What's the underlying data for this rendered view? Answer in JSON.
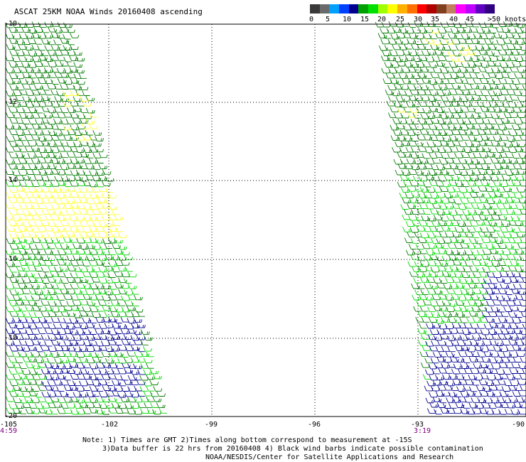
{
  "title": "ASCAT 25KM NOAA Winds 20160408 ascending",
  "legend": {
    "labels": [
      "0",
      "5",
      "10",
      "15",
      "20",
      "25",
      "30",
      "35",
      "40",
      "45",
      ">50 knots"
    ],
    "colors": [
      "#3a3a3a",
      "#6a6a6a",
      "#00a0ff",
      "#0040ff",
      "#000090",
      "#00a000",
      "#00e000",
      "#a0ff00",
      "#ffff00",
      "#ffb000",
      "#ff7000",
      "#ff0000",
      "#b00000",
      "#804020",
      "#c08060",
      "#ff00ff",
      "#c000ff",
      "#6000c0",
      "#300080"
    ]
  },
  "axes": {
    "lat_labels": [
      "-10",
      "-12",
      "-14",
      "-16",
      "-18",
      "-20"
    ],
    "lon_labels": [
      "-105",
      "-102",
      "-99",
      "-96",
      "-93",
      "-90"
    ],
    "time_labels": [
      "4:59",
      "3:19"
    ],
    "grid": true
  },
  "wind_colors": {
    "dark_green": "#007a00",
    "light_green": "#00d800",
    "yellow": "#ffff30",
    "navy": "#000090"
  },
  "notes": [
    "Note: 1) Times are GMT 2)Times along bottom correspond to measurement at -15S",
    "3)Data buffer is 22 hrs from 20160408 4) Black wind barbs indicate possible contamination",
    "NOAA/NESDIS/Center for Satellite Applications and Research"
  ]
}
